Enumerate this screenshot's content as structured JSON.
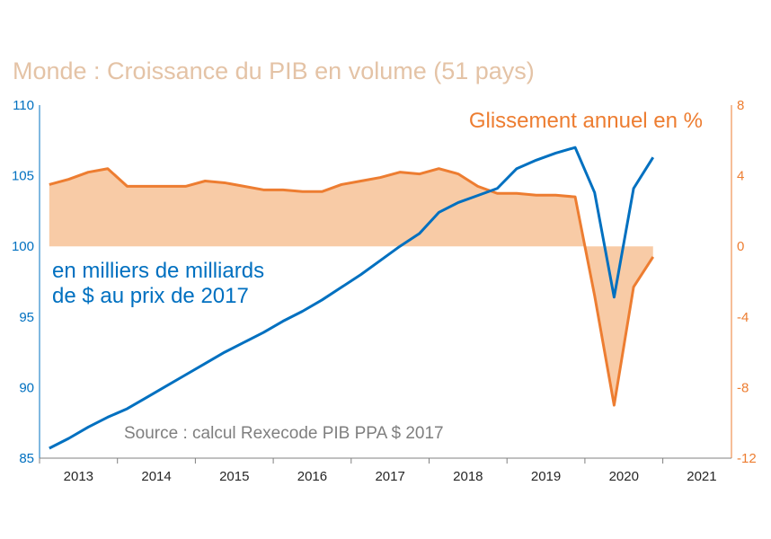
{
  "chart_data": {
    "type": "line",
    "title": "Monde : Croissance du PIB en volume (51 pays)",
    "x_categories": [
      "2013",
      "2014",
      "2015",
      "2016",
      "2017",
      "2018",
      "2019",
      "2020",
      "2021"
    ],
    "left_axis": {
      "label": "en milliers de milliards de $ au prix de 2017",
      "label_lines": [
        "en milliers de milliards",
        "de $ au prix de 2017"
      ],
      "min": 85,
      "max": 110,
      "ticks": [
        110,
        105,
        100,
        95,
        90,
        85
      ],
      "color": "#0070c0"
    },
    "right_axis": {
      "label": "Glissement annuel en %",
      "min": -12,
      "max": 8,
      "ticks": [
        8,
        4,
        0,
        -4,
        -8,
        -12
      ],
      "color": "#ed7d31"
    },
    "source": "Source : calcul Rexecode PIB PPA $ 2017",
    "series": [
      {
        "name": "en milliers de milliards de $ au prix de 2017",
        "axis": "left",
        "color": "#0070c0",
        "points": [
          [
            "2013T1",
            85.7
          ],
          [
            "2013T2",
            86.4
          ],
          [
            "2013T3",
            87.2
          ],
          [
            "2013T4",
            87.9
          ],
          [
            "2014T1",
            88.5
          ],
          [
            "2014T2",
            89.3
          ],
          [
            "2014T3",
            90.1
          ],
          [
            "2014T4",
            90.9
          ],
          [
            "2015T1",
            91.7
          ],
          [
            "2015T2",
            92.5
          ],
          [
            "2015T3",
            93.2
          ],
          [
            "2015T4",
            93.9
          ],
          [
            "2016T1",
            94.7
          ],
          [
            "2016T2",
            95.4
          ],
          [
            "2016T3",
            96.2
          ],
          [
            "2016T4",
            97.1
          ],
          [
            "2017T1",
            98.0
          ],
          [
            "2017T2",
            99.0
          ],
          [
            "2017T3",
            100.0
          ],
          [
            "2017T4",
            100.9
          ],
          [
            "2018T1",
            102.4
          ],
          [
            "2018T2",
            103.1
          ],
          [
            "2018T3",
            103.6
          ],
          [
            "2018T4",
            104.1
          ],
          [
            "2019T1",
            105.5
          ],
          [
            "2019T2",
            106.1
          ],
          [
            "2019T3",
            106.6
          ],
          [
            "2019T4",
            107.0
          ],
          [
            "2020T1",
            103.8
          ],
          [
            "2020T2",
            96.4
          ],
          [
            "2020T3",
            104.1
          ],
          [
            "2020T4",
            106.3
          ]
        ]
      },
      {
        "name": "Glissement annuel en %",
        "axis": "right",
        "color": "#ed7d31",
        "fill": "#f8cba6",
        "points": [
          [
            "2013T1",
            3.5
          ],
          [
            "2013T2",
            3.8
          ],
          [
            "2013T3",
            4.2
          ],
          [
            "2013T4",
            4.4
          ],
          [
            "2014T1",
            3.4
          ],
          [
            "2014T2",
            3.4
          ],
          [
            "2014T3",
            3.4
          ],
          [
            "2014T4",
            3.4
          ],
          [
            "2015T1",
            3.7
          ],
          [
            "2015T2",
            3.6
          ],
          [
            "2015T3",
            3.4
          ],
          [
            "2015T4",
            3.2
          ],
          [
            "2016T1",
            3.2
          ],
          [
            "2016T2",
            3.1
          ],
          [
            "2016T3",
            3.1
          ],
          [
            "2016T4",
            3.5
          ],
          [
            "2017T1",
            3.7
          ],
          [
            "2017T2",
            3.9
          ],
          [
            "2017T3",
            4.2
          ],
          [
            "2017T4",
            4.1
          ],
          [
            "2018T1",
            4.4
          ],
          [
            "2018T2",
            4.1
          ],
          [
            "2018T3",
            3.4
          ],
          [
            "2018T4",
            3.0
          ],
          [
            "2019T1",
            3.0
          ],
          [
            "2019T2",
            2.9
          ],
          [
            "2019T3",
            2.9
          ],
          [
            "2019T4",
            2.8
          ],
          [
            "2020T1",
            -2.8
          ],
          [
            "2020T2",
            -9.0
          ],
          [
            "2020T3",
            -2.3
          ],
          [
            "2020T4",
            -0.6
          ]
        ]
      }
    ],
    "grid": false,
    "legend": "inline labels"
  }
}
